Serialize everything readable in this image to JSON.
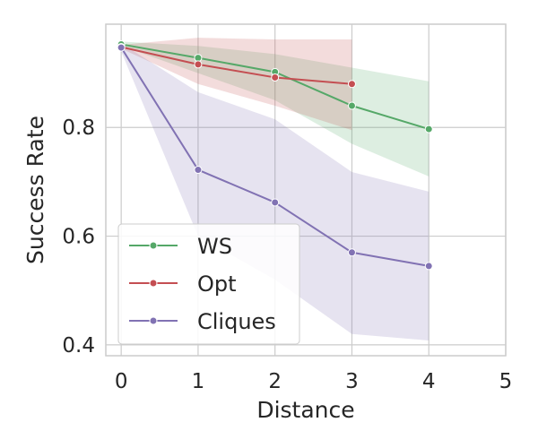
{
  "chart_data": {
    "type": "line",
    "title": "",
    "xlabel": "Distance",
    "ylabel": "Success Rate",
    "xlim": [
      -0.2,
      5
    ],
    "ylim": [
      0.38,
      0.99
    ],
    "xticks": [
      0,
      1,
      2,
      3,
      4,
      5
    ],
    "xtick_labels": [
      "0",
      "1",
      "2",
      "3",
      "4",
      "5"
    ],
    "yticks": [
      0.4,
      0.6,
      0.8
    ],
    "ytick_labels": [
      "0.4",
      "0.6",
      "0.8"
    ],
    "grid": true,
    "legend": "lower-left",
    "series": [
      {
        "name": "WS",
        "color": "#55a868",
        "band_color": "#55a868",
        "x": [
          0,
          1,
          2,
          3,
          4
        ],
        "values": [
          0.953,
          0.928,
          0.902,
          0.84,
          0.797
        ],
        "lower": [
          0.95,
          0.9,
          0.85,
          0.77,
          0.71
        ],
        "upper": [
          0.958,
          0.95,
          0.935,
          0.91,
          0.885
        ]
      },
      {
        "name": "Opt",
        "color": "#c44e52",
        "band_color": "#c44e52",
        "x": [
          0,
          1,
          2,
          3
        ],
        "values": [
          0.948,
          0.916,
          0.892,
          0.88
        ],
        "lower": [
          0.945,
          0.88,
          0.84,
          0.795
        ],
        "upper": [
          0.952,
          0.965,
          0.962,
          0.962
        ]
      },
      {
        "name": "Cliques",
        "color": "#8172b3",
        "band_color": "#8172b3",
        "x": [
          0,
          1,
          2,
          3,
          4
        ],
        "values": [
          0.947,
          0.722,
          0.662,
          0.57,
          0.545
        ],
        "lower": [
          0.94,
          0.6,
          0.52,
          0.42,
          0.408
        ],
        "upper": [
          0.955,
          0.865,
          0.815,
          0.718,
          0.682
        ]
      }
    ]
  }
}
